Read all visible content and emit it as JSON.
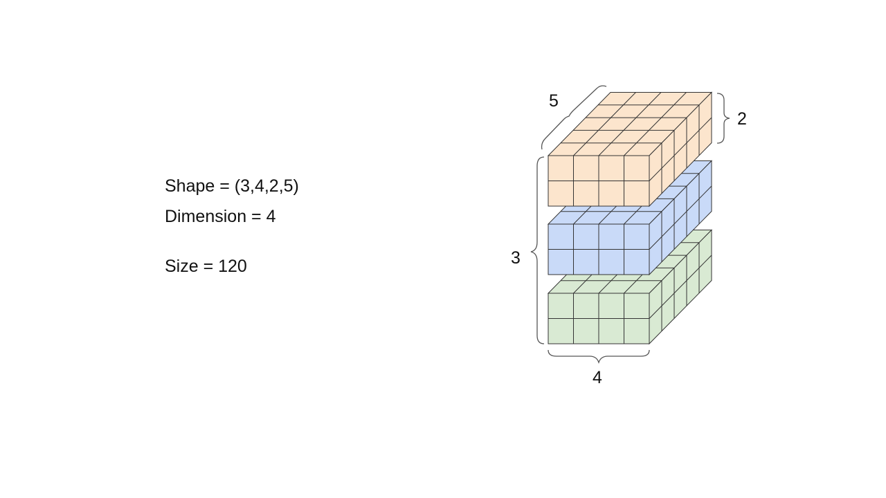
{
  "text": {
    "shape_line": "Shape = (3,4,2,5)",
    "dimension_line": "Dimension = 4",
    "size_line": "Size = 120"
  },
  "tensor": {
    "shape": [
      3,
      4,
      2,
      5
    ],
    "axis_labels": {
      "blocks": "3",
      "width": "4",
      "height": "2",
      "depth": "5"
    },
    "block_colors": [
      "#fce5cd",
      "#c9daf8",
      "#d9ead3"
    ]
  }
}
